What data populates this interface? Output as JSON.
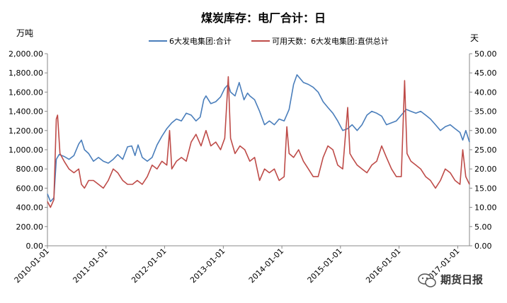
{
  "chart_data": {
    "type": "line",
    "title": "煤炭库存：电厂合计：日",
    "left_unit": "万吨",
    "right_unit": "天",
    "y_left": {
      "min": 0,
      "max": 2000,
      "step": 200,
      "ticks": [
        "0.00",
        "200.00",
        "400.00",
        "600.00",
        "800.00",
        "1,000.00",
        "1,200.00",
        "1,400.00",
        "1,600.00",
        "1,800.00",
        "2,000.00"
      ]
    },
    "y_right": {
      "min": 0,
      "max": 50,
      "step": 5,
      "ticks": [
        "0.00",
        "5.00",
        "10.00",
        "15.00",
        "20.00",
        "25.00",
        "30.00",
        "35.00",
        "40.00",
        "45.00",
        "50.00"
      ]
    },
    "x_ticks": [
      "2010-01-01",
      "2011-01-01",
      "2012-01-01",
      "2013-01-01",
      "2014-01-01",
      "2015-01-01",
      "2016-01-01",
      "2017-01-01"
    ],
    "x_range": [
      "2010-01-01",
      "2017-03-15"
    ],
    "series": [
      {
        "name": "6大发电集团:合计",
        "axis": "left",
        "color": "#4A7EBB",
        "points": [
          [
            "2010-01-01",
            540
          ],
          [
            "2010-01-20",
            460
          ],
          [
            "2010-02-10",
            500
          ],
          [
            "2010-02-25",
            900
          ],
          [
            "2010-03-15",
            950
          ],
          [
            "2010-04-15",
            930
          ],
          [
            "2010-05-15",
            900
          ],
          [
            "2010-06-15",
            940
          ],
          [
            "2010-07-15",
            1060
          ],
          [
            "2010-08-01",
            1100
          ],
          [
            "2010-08-20",
            1000
          ],
          [
            "2010-09-15",
            960
          ],
          [
            "2010-10-15",
            880
          ],
          [
            "2010-11-15",
            920
          ],
          [
            "2010-12-15",
            880
          ],
          [
            "2011-01-15",
            860
          ],
          [
            "2011-02-15",
            900
          ],
          [
            "2011-03-15",
            950
          ],
          [
            "2011-04-15",
            900
          ],
          [
            "2011-05-15",
            1030
          ],
          [
            "2011-06-10",
            1040
          ],
          [
            "2011-07-01",
            940
          ],
          [
            "2011-07-20",
            1050
          ],
          [
            "2011-08-15",
            920
          ],
          [
            "2011-09-15",
            880
          ],
          [
            "2011-10-15",
            920
          ],
          [
            "2011-11-15",
            1050
          ],
          [
            "2011-12-15",
            1140
          ],
          [
            "2012-01-15",
            1220
          ],
          [
            "2012-02-15",
            1280
          ],
          [
            "2012-03-15",
            1320
          ],
          [
            "2012-04-15",
            1300
          ],
          [
            "2012-05-15",
            1380
          ],
          [
            "2012-06-15",
            1360
          ],
          [
            "2012-07-15",
            1300
          ],
          [
            "2012-08-10",
            1340
          ],
          [
            "2012-09-01",
            1520
          ],
          [
            "2012-09-15",
            1560
          ],
          [
            "2012-10-15",
            1480
          ],
          [
            "2012-11-15",
            1500
          ],
          [
            "2012-12-15",
            1550
          ],
          [
            "2013-01-10",
            1640
          ],
          [
            "2013-02-01",
            1680
          ],
          [
            "2013-02-15",
            1600
          ],
          [
            "2013-03-15",
            1560
          ],
          [
            "2013-04-10",
            1700
          ],
          [
            "2013-05-10",
            1520
          ],
          [
            "2013-06-01",
            1590
          ],
          [
            "2013-06-15",
            1560
          ],
          [
            "2013-07-15",
            1520
          ],
          [
            "2013-08-15",
            1400
          ],
          [
            "2013-09-15",
            1260
          ],
          [
            "2013-10-15",
            1300
          ],
          [
            "2013-11-15",
            1260
          ],
          [
            "2013-12-15",
            1320
          ],
          [
            "2014-01-15",
            1300
          ],
          [
            "2014-02-15",
            1420
          ],
          [
            "2014-03-15",
            1680
          ],
          [
            "2014-04-05",
            1780
          ],
          [
            "2014-04-15",
            1760
          ],
          [
            "2014-05-15",
            1700
          ],
          [
            "2014-06-15",
            1680
          ],
          [
            "2014-07-15",
            1650
          ],
          [
            "2014-08-15",
            1600
          ],
          [
            "2014-09-15",
            1500
          ],
          [
            "2014-10-15",
            1440
          ],
          [
            "2014-11-15",
            1380
          ],
          [
            "2014-12-15",
            1300
          ],
          [
            "2015-01-15",
            1200
          ],
          [
            "2015-02-15",
            1220
          ],
          [
            "2015-03-15",
            1260
          ],
          [
            "2015-04-15",
            1200
          ],
          [
            "2015-05-15",
            1260
          ],
          [
            "2015-06-15",
            1360
          ],
          [
            "2015-07-15",
            1400
          ],
          [
            "2015-08-15",
            1380
          ],
          [
            "2015-09-15",
            1350
          ],
          [
            "2015-10-15",
            1260
          ],
          [
            "2015-11-15",
            1280
          ],
          [
            "2015-12-15",
            1300
          ],
          [
            "2016-01-15",
            1360
          ],
          [
            "2016-02-15",
            1420
          ],
          [
            "2016-03-15",
            1400
          ],
          [
            "2016-04-15",
            1380
          ],
          [
            "2016-05-15",
            1400
          ],
          [
            "2016-06-15",
            1360
          ],
          [
            "2016-07-15",
            1320
          ],
          [
            "2016-08-15",
            1260
          ],
          [
            "2016-09-15",
            1200
          ],
          [
            "2016-10-15",
            1240
          ],
          [
            "2016-11-15",
            1260
          ],
          [
            "2016-12-15",
            1220
          ],
          [
            "2017-01-15",
            1180
          ],
          [
            "2017-02-01",
            1100
          ],
          [
            "2017-02-20",
            1200
          ],
          [
            "2017-03-15",
            1080
          ]
        ]
      },
      {
        "name": "可用天数：6大发电集团:直供总计",
        "axis": "right",
        "color": "#BE4B48",
        "points": [
          [
            "2010-01-01",
            11.5
          ],
          [
            "2010-01-20",
            10
          ],
          [
            "2010-02-10",
            12
          ],
          [
            "2010-02-25",
            33
          ],
          [
            "2010-03-05",
            34
          ],
          [
            "2010-03-20",
            24
          ],
          [
            "2010-04-15",
            22
          ],
          [
            "2010-05-15",
            20
          ],
          [
            "2010-06-15",
            19
          ],
          [
            "2010-07-15",
            20
          ],
          [
            "2010-08-01",
            16
          ],
          [
            "2010-08-20",
            15
          ],
          [
            "2010-09-15",
            17
          ],
          [
            "2010-10-15",
            17
          ],
          [
            "2010-11-15",
            16
          ],
          [
            "2010-12-15",
            15
          ],
          [
            "2011-01-15",
            17
          ],
          [
            "2011-02-15",
            20
          ],
          [
            "2011-03-15",
            19
          ],
          [
            "2011-04-15",
            17
          ],
          [
            "2011-05-15",
            16
          ],
          [
            "2011-06-15",
            16
          ],
          [
            "2011-07-15",
            17
          ],
          [
            "2011-08-15",
            16
          ],
          [
            "2011-09-15",
            18
          ],
          [
            "2011-10-15",
            21
          ],
          [
            "2011-11-15",
            20
          ],
          [
            "2011-12-15",
            22
          ],
          [
            "2012-01-15",
            21
          ],
          [
            "2012-02-01",
            30
          ],
          [
            "2012-02-15",
            20
          ],
          [
            "2012-03-15",
            22
          ],
          [
            "2012-04-15",
            23
          ],
          [
            "2012-05-15",
            22
          ],
          [
            "2012-06-15",
            27
          ],
          [
            "2012-07-15",
            29
          ],
          [
            "2012-08-15",
            26
          ],
          [
            "2012-09-15",
            30
          ],
          [
            "2012-10-15",
            26
          ],
          [
            "2012-11-15",
            27
          ],
          [
            "2012-12-15",
            25
          ],
          [
            "2013-01-10",
            28
          ],
          [
            "2013-02-01",
            44
          ],
          [
            "2013-02-15",
            28
          ],
          [
            "2013-03-15",
            24
          ],
          [
            "2013-04-15",
            26
          ],
          [
            "2013-05-15",
            25
          ],
          [
            "2013-06-15",
            22
          ],
          [
            "2013-07-15",
            23
          ],
          [
            "2013-08-15",
            17
          ],
          [
            "2013-09-15",
            20
          ],
          [
            "2013-10-15",
            19
          ],
          [
            "2013-11-15",
            20
          ],
          [
            "2013-12-15",
            17
          ],
          [
            "2014-01-15",
            18
          ],
          [
            "2014-02-01",
            31
          ],
          [
            "2014-02-15",
            24
          ],
          [
            "2014-03-15",
            23
          ],
          [
            "2014-04-15",
            25
          ],
          [
            "2014-05-15",
            22
          ],
          [
            "2014-06-15",
            20
          ],
          [
            "2014-07-15",
            18
          ],
          [
            "2014-08-15",
            18
          ],
          [
            "2014-09-15",
            23
          ],
          [
            "2014-10-15",
            26
          ],
          [
            "2014-11-15",
            25
          ],
          [
            "2014-12-15",
            21
          ],
          [
            "2015-01-15",
            20
          ],
          [
            "2015-02-15",
            36
          ],
          [
            "2015-03-01",
            24
          ],
          [
            "2015-03-15",
            23
          ],
          [
            "2015-04-15",
            21
          ],
          [
            "2015-05-15",
            20
          ],
          [
            "2015-06-15",
            19
          ],
          [
            "2015-07-15",
            21
          ],
          [
            "2015-08-15",
            22
          ],
          [
            "2015-09-15",
            26
          ],
          [
            "2015-10-15",
            23
          ],
          [
            "2015-11-15",
            20
          ],
          [
            "2015-12-15",
            18
          ],
          [
            "2016-01-15",
            18
          ],
          [
            "2016-02-05",
            43
          ],
          [
            "2016-02-20",
            24
          ],
          [
            "2016-03-15",
            22
          ],
          [
            "2016-04-15",
            21
          ],
          [
            "2016-05-15",
            20
          ],
          [
            "2016-06-15",
            18
          ],
          [
            "2016-07-15",
            17
          ],
          [
            "2016-08-15",
            15
          ],
          [
            "2016-09-15",
            17
          ],
          [
            "2016-10-15",
            20
          ],
          [
            "2016-11-15",
            19
          ],
          [
            "2016-12-15",
            17
          ],
          [
            "2017-01-15",
            16
          ],
          [
            "2017-02-01",
            25
          ],
          [
            "2017-02-20",
            18
          ],
          [
            "2017-03-15",
            16
          ]
        ]
      }
    ],
    "legend_position": "top",
    "grid": false
  },
  "watermark": {
    "text": "期货日报",
    "icon": "wechat-icon"
  }
}
